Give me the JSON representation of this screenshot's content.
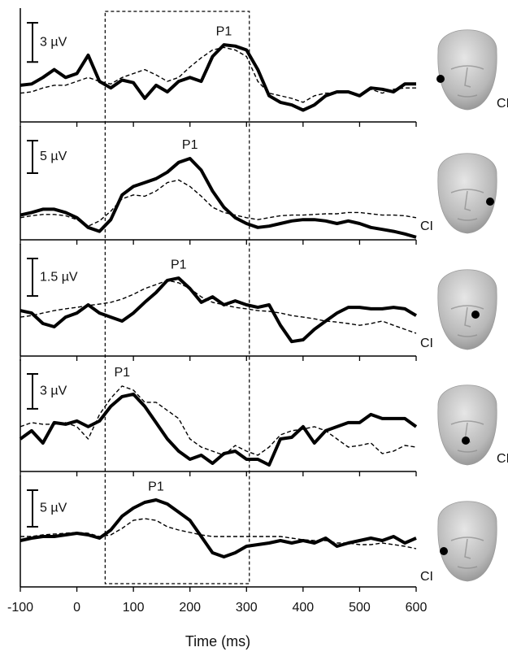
{
  "chart_data": {
    "type": "line",
    "xlabel": "Time (ms)",
    "xlim": [
      -100,
      600
    ],
    "xticks": [
      -100,
      0,
      100,
      200,
      300,
      400,
      500,
      600
    ],
    "highlight_window": [
      50,
      305
    ],
    "x": [
      -100,
      -80,
      -60,
      -40,
      -20,
      0,
      20,
      40,
      60,
      80,
      100,
      120,
      140,
      160,
      180,
      200,
      220,
      240,
      260,
      280,
      300,
      320,
      340,
      360,
      380,
      400,
      420,
      440,
      460,
      480,
      500,
      520,
      540,
      560,
      580,
      600
    ],
    "panels": [
      {
        "ylim": [
          -2.6,
          6.1
        ],
        "scale_bar": {
          "value": 3,
          "label": "3 µV"
        },
        "annotation": "P1",
        "side_label": "CI",
        "series": [
          {
            "color": "#000000",
            "dashed": false,
            "values": [
              0.2,
              0.3,
              0.8,
              1.4,
              0.8,
              1.1,
              2.5,
              0.5,
              0,
              0.6,
              0.4,
              -0.8,
              0.2,
              -0.3,
              0.5,
              0.8,
              0.5,
              2.4,
              3.3,
              3.2,
              2.9,
              1.4,
              -0.6,
              -1.1,
              -1.3,
              -1.7,
              -1.3,
              -0.6,
              -0.3,
              -0.3,
              -0.6,
              0,
              -0.1,
              -0.3,
              0.3,
              0.3
            ]
          },
          {
            "color": "#000000",
            "dashed": true,
            "values": [
              -0.4,
              -0.3,
              0,
              0.2,
              0.2,
              0.5,
              0.8,
              0.5,
              0.3,
              0.8,
              1.1,
              1.4,
              1,
              0.5,
              0.8,
              1.6,
              2.3,
              2.9,
              3.1,
              2.9,
              2.4,
              0.5,
              -0.4,
              -0.6,
              -0.8,
              -1.1,
              -0.6,
              -0.4,
              -0.4,
              -0.3,
              -0.6,
              -0.1,
              -0.4,
              -0.1,
              0,
              0
            ]
          }
        ]
      },
      {
        "ylim": [
          -3.4,
          14.1
        ],
        "scale_bar": {
          "value": 5,
          "label": "5 µV"
        },
        "annotation": "P1",
        "side_label": "CI",
        "series": [
          {
            "color": "#000000",
            "dashed": false,
            "values": [
              0.4,
              0.8,
              1.3,
              1.3,
              0.8,
              0,
              -1.5,
              -2.1,
              -0.3,
              3.5,
              4.8,
              5.4,
              6,
              7,
              8.5,
              9.1,
              7.3,
              4.1,
              1.6,
              0,
              -0.9,
              -1.5,
              -1.3,
              -0.9,
              -0.5,
              -0.3,
              -0.3,
              -0.5,
              -0.9,
              -0.5,
              -0.9,
              -1.5,
              -1.8,
              -2.1,
              -2.5,
              -3
            ]
          },
          {
            "color": "#000000",
            "dashed": true,
            "values": [
              0,
              0.3,
              0.5,
              0.5,
              0.3,
              -0.3,
              -1.3,
              -0.5,
              1,
              2.9,
              3.5,
              3.3,
              4.1,
              5.4,
              5.8,
              4.8,
              3.3,
              1.6,
              0.8,
              0.4,
              0,
              -0.3,
              0,
              0.3,
              0.4,
              0.4,
              0.5,
              0.6,
              0.6,
              0.8,
              0.8,
              0.6,
              0.4,
              0.4,
              0.3,
              0
            ]
          }
        ]
      },
      {
        "ylim": [
          -1.82,
          2.67
        ],
        "scale_bar": {
          "value": 1.5,
          "label": "1.5 µV"
        },
        "annotation": "P1",
        "side_label": "CI",
        "series": [
          {
            "color": "#000000",
            "dashed": false,
            "values": [
              0,
              -0.1,
              -0.52,
              -0.65,
              -0.26,
              -0.1,
              0.23,
              -0.1,
              -0.26,
              -0.42,
              -0.1,
              0.33,
              0.72,
              1.21,
              1.3,
              0.88,
              0.33,
              0.55,
              0.23,
              0.39,
              0.23,
              0.13,
              0.23,
              -0.59,
              -1.24,
              -1.17,
              -0.75,
              -0.42,
              -0.1,
              0.13,
              0.13,
              0.07,
              0.07,
              0.13,
              0.07,
              -0.2
            ]
          },
          {
            "color": "#000000",
            "dashed": true,
            "values": [
              -0.26,
              -0.2,
              -0.1,
              0,
              0.07,
              0.13,
              0.2,
              0.26,
              0.33,
              0.46,
              0.65,
              0.88,
              1.04,
              1.21,
              1.11,
              0.88,
              0.55,
              0.33,
              0.23,
              0.13,
              0.07,
              0,
              -0.03,
              -0.1,
              -0.2,
              -0.26,
              -0.33,
              -0.42,
              -0.46,
              -0.52,
              -0.59,
              -0.52,
              -0.42,
              -0.59,
              -0.75,
              -0.91
            ]
          }
        ]
      },
      {
        "ylim": [
          -3.5,
          6.15
        ],
        "scale_bar": {
          "value": 3,
          "label": "3 µV"
        },
        "annotation": "P1",
        "side_label": "CI",
        "series": [
          {
            "color": "#000000",
            "dashed": false,
            "values": [
              -0.7,
              0,
              -1.05,
              0.7,
              0.56,
              0.84,
              0.35,
              0.84,
              2.1,
              2.94,
              3.15,
              2.1,
              0.7,
              -0.7,
              -1.75,
              -2.45,
              -2.1,
              -2.8,
              -1.96,
              -1.75,
              -2.45,
              -2.45,
              -2.94,
              -0.7,
              -0.56,
              0.35,
              -1.05,
              0,
              0.35,
              0.7,
              0.7,
              1.4,
              1.05,
              1.05,
              1.05,
              0.35
            ]
          },
          {
            "color": "#000000",
            "dashed": true,
            "values": [
              0.35,
              0.7,
              0.56,
              0.56,
              0.7,
              0.35,
              -0.7,
              1.4,
              2.8,
              3.85,
              3.5,
              2.45,
              2.45,
              1.75,
              1.05,
              -0.7,
              -1.4,
              -1.75,
              -2.1,
              -1.26,
              -1.75,
              -2.1,
              -1.4,
              -0.35,
              0,
              0.14,
              0.35,
              0,
              -0.7,
              -1.4,
              -1.26,
              -1.05,
              -1.96,
              -1.75,
              -1.26,
              -1.4
            ]
          }
        ]
      },
      {
        "ylim": [
          -6.67,
          8.56
        ],
        "scale_bar": {
          "value": 5,
          "label": "5 µV"
        },
        "annotation": "P1",
        "side_label": "CI",
        "series": [
          {
            "color": "#000000",
            "dashed": false,
            "values": [
              -0.33,
              0,
              0.22,
              0.22,
              0.44,
              0.67,
              0.44,
              0,
              1.11,
              3,
              4.11,
              4.89,
              5.22,
              4.67,
              3.56,
              2.44,
              0.22,
              -2,
              -2.56,
              -2,
              -1.11,
              -0.89,
              -0.67,
              -0.33,
              -0.67,
              -0.33,
              -0.67,
              0,
              -1.11,
              -0.67,
              -0.33,
              0,
              -0.33,
              0.22,
              -0.67,
              0
            ]
          },
          {
            "color": "#000000",
            "dashed": true,
            "values": [
              0.22,
              0.22,
              0.44,
              0.56,
              0.67,
              0.78,
              0.67,
              0.22,
              0.44,
              1.33,
              2.44,
              2.67,
              2.44,
              1.56,
              1.11,
              0.78,
              0.44,
              0.22,
              0.22,
              0.22,
              0.22,
              0.22,
              0.22,
              0.22,
              0,
              -0.22,
              -0.33,
              -0.33,
              -0.67,
              -0.67,
              -0.89,
              -0.89,
              -0.67,
              -0.89,
              -1.11,
              -1.44
            ]
          }
        ]
      }
    ]
  }
}
